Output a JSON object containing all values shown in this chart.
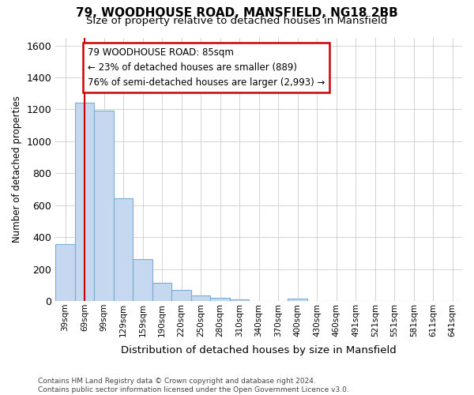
{
  "title1": "79, WOODHOUSE ROAD, MANSFIELD, NG18 2BB",
  "title2": "Size of property relative to detached houses in Mansfield",
  "xlabel": "Distribution of detached houses by size in Mansfield",
  "ylabel": "Number of detached properties",
  "footer": "Contains HM Land Registry data © Crown copyright and database right 2024.\nContains public sector information licensed under the Open Government Licence v3.0.",
  "categories": [
    "39sqm",
    "69sqm",
    "99sqm",
    "129sqm",
    "159sqm",
    "190sqm",
    "220sqm",
    "250sqm",
    "280sqm",
    "310sqm",
    "340sqm",
    "370sqm",
    "400sqm",
    "430sqm",
    "460sqm",
    "491sqm",
    "521sqm",
    "551sqm",
    "581sqm",
    "611sqm",
    "641sqm"
  ],
  "values": [
    355,
    1240,
    1190,
    645,
    260,
    115,
    70,
    37,
    22,
    12,
    0,
    0,
    15,
    0,
    0,
    0,
    0,
    0,
    0,
    0,
    0
  ],
  "bar_color": "#c5d8f0",
  "bar_edge_color": "#7aadd4",
  "vline_x": 1.0,
  "vline_color": "#cc0000",
  "annotation_text": "79 WOODHOUSE ROAD: 85sqm\n← 23% of detached houses are smaller (889)\n76% of semi-detached houses are larger (2,993) →",
  "annotation_box_color": "#ffffff",
  "annotation_box_edge": "#cc0000",
  "ylim": [
    0,
    1650
  ],
  "yticks": [
    0,
    200,
    400,
    600,
    800,
    1000,
    1200,
    1400,
    1600
  ],
  "grid_color": "#cccccc",
  "background_color": "#ffffff",
  "ax_background_color": "#ffffff"
}
